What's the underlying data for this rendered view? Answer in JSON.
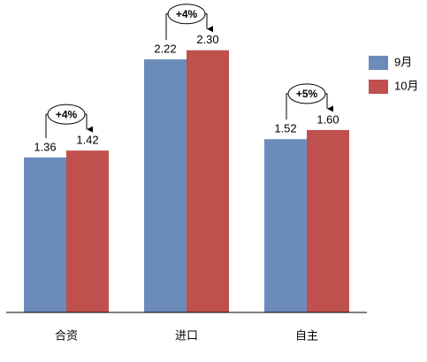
{
  "chart_data": {
    "type": "bar",
    "categories": [
      "合资",
      "进口",
      "自主"
    ],
    "series": [
      {
        "name": "9月",
        "color": "#6b8cba",
        "values": [
          1.36,
          2.22,
          1.52
        ],
        "value_labels": [
          "1.36",
          "2.22",
          "1.52"
        ]
      },
      {
        "name": "10月",
        "color": "#c0504d",
        "values": [
          1.42,
          2.3,
          1.6
        ],
        "value_labels": [
          "1.42",
          "2.30",
          "1.60"
        ]
      }
    ],
    "annotations": [
      "+4%",
      "+4%",
      "+5%"
    ],
    "ylim": [
      0,
      2.5
    ],
    "legend": "right"
  }
}
